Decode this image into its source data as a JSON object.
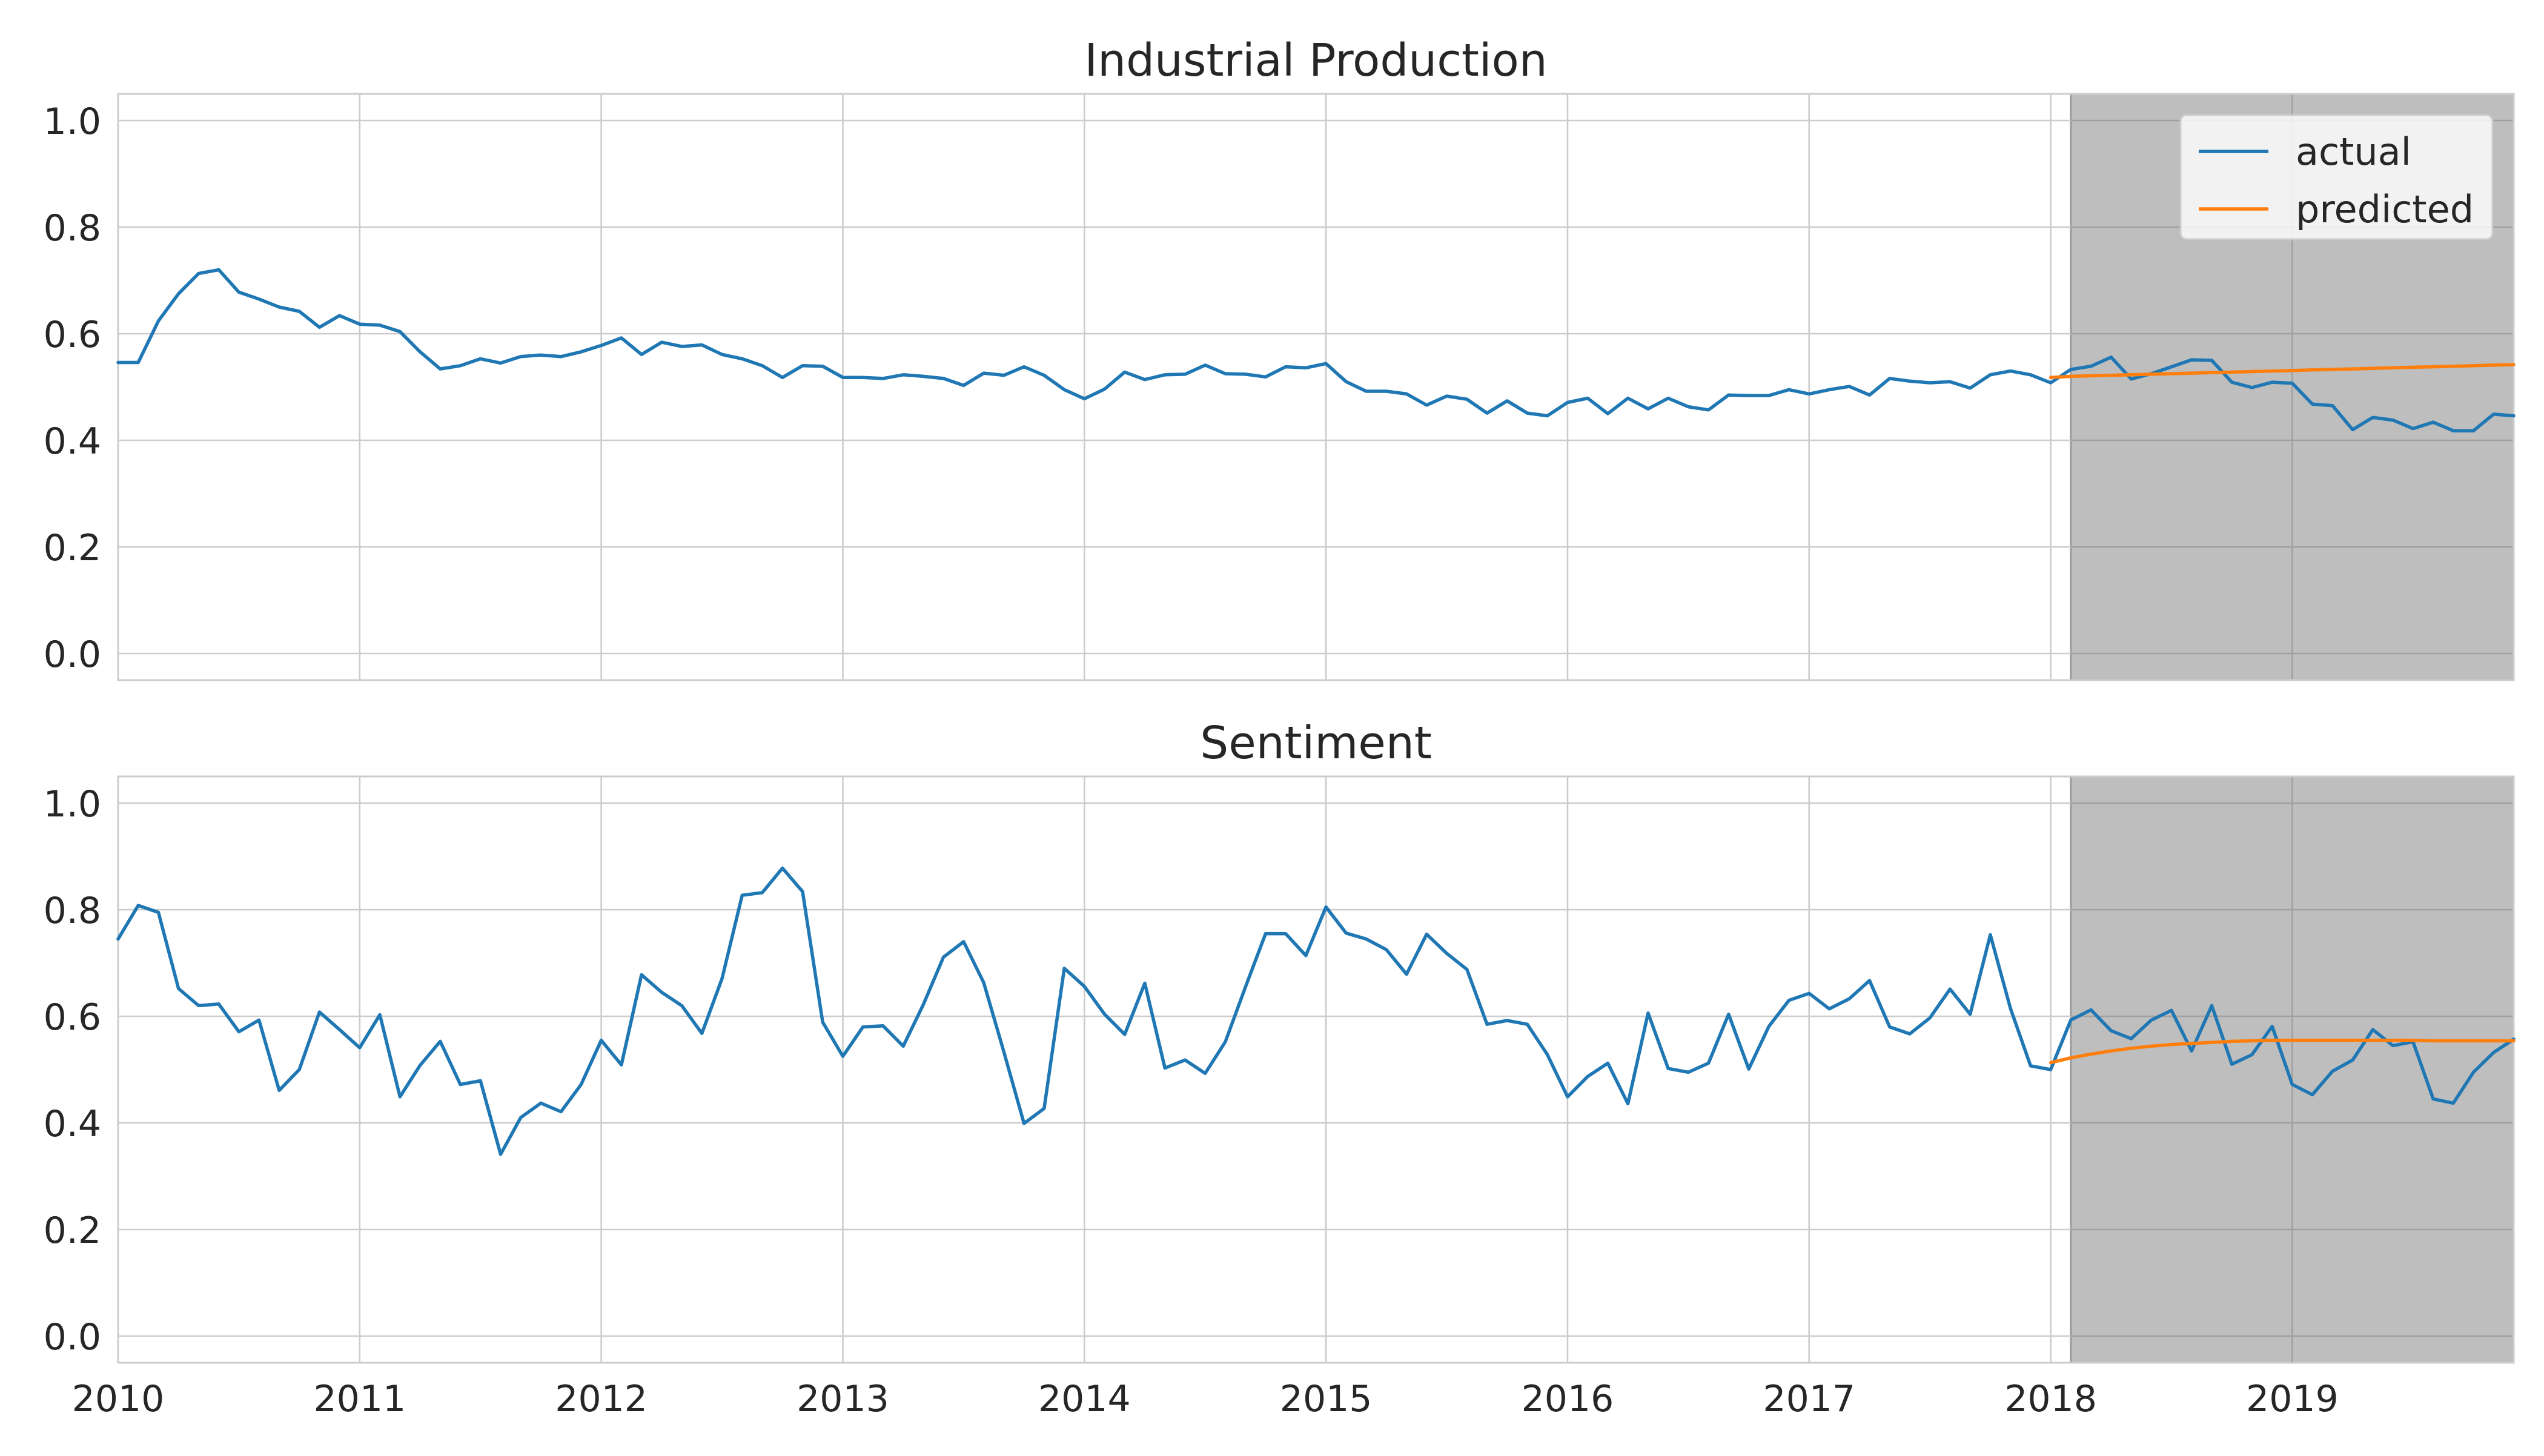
{
  "colors": {
    "actual": "#1f77b4",
    "predicted": "#ff7f0e",
    "forecast_shade": "#bebebe",
    "grid": "#cccccc",
    "axes_edge": "#cccccc",
    "text": "#262626"
  },
  "legend": {
    "placement": "top-right",
    "entries": [
      "actual",
      "predicted"
    ]
  },
  "chart_data": [
    {
      "type": "line",
      "title": "Industrial Production",
      "xlabel": "",
      "ylabel": "",
      "ylim": [
        -0.05,
        1.05
      ],
      "xlim": [
        "2010-01",
        "2019-12"
      ],
      "grid": true,
      "x_ticks": [
        "2010",
        "2011",
        "2012",
        "2013",
        "2014",
        "2015",
        "2016",
        "2017",
        "2018",
        "2019"
      ],
      "y_ticks": [
        "0.0",
        "0.2",
        "0.4",
        "0.6",
        "0.8",
        "1.0"
      ],
      "forecast_region": [
        "2018-02",
        "2019-12"
      ],
      "series": [
        {
          "name": "actual",
          "start": "2010-01",
          "values": [
            0.546,
            0.546,
            0.624,
            0.675,
            0.713,
            0.72,
            0.678,
            0.665,
            0.65,
            0.642,
            0.612,
            0.634,
            0.618,
            0.616,
            0.604,
            0.566,
            0.534,
            0.54,
            0.553,
            0.545,
            0.557,
            0.56,
            0.557,
            0.566,
            0.578,
            0.592,
            0.561,
            0.584,
            0.576,
            0.579,
            0.561,
            0.553,
            0.54,
            0.518,
            0.54,
            0.539,
            0.518,
            0.518,
            0.516,
            0.523,
            0.52,
            0.516,
            0.503,
            0.526,
            0.522,
            0.538,
            0.522,
            0.495,
            0.478,
            0.496,
            0.528,
            0.514,
            0.523,
            0.524,
            0.541,
            0.525,
            0.524,
            0.519,
            0.538,
            0.536,
            0.544,
            0.51,
            0.492,
            0.492,
            0.487,
            0.466,
            0.483,
            0.477,
            0.451,
            0.474,
            0.451,
            0.446,
            0.471,
            0.479,
            0.45,
            0.479,
            0.459,
            0.479,
            0.463,
            0.457,
            0.485,
            0.484,
            0.484,
            0.495,
            0.487,
            0.495,
            0.501,
            0.485,
            0.516,
            0.511,
            0.508,
            0.51,
            0.498,
            0.523,
            0.53,
            0.523,
            0.508,
            0.533,
            0.539,
            0.556,
            0.515,
            0.525,
            0.538,
            0.551,
            0.55,
            0.509,
            0.499,
            0.509,
            0.507,
            0.468,
            0.465,
            0.42,
            0.443,
            0.438,
            0.422,
            0.434,
            0.418,
            0.418,
            0.449,
            0.446
          ]
        },
        {
          "name": "predicted",
          "start": "2018-01",
          "values": [
            0.518,
            0.52,
            0.521,
            0.522,
            0.523,
            0.524,
            0.525,
            0.526,
            0.527,
            0.528,
            0.529,
            0.53,
            0.531,
            0.532,
            0.533,
            0.534,
            0.535,
            0.536,
            0.537,
            0.538,
            0.539,
            0.54,
            0.541,
            0.542
          ]
        }
      ]
    },
    {
      "type": "line",
      "title": "Sentiment",
      "xlabel": "",
      "ylabel": "",
      "ylim": [
        -0.05,
        1.05
      ],
      "xlim": [
        "2010-01",
        "2019-12"
      ],
      "grid": true,
      "x_ticks": [
        "2010",
        "2011",
        "2012",
        "2013",
        "2014",
        "2015",
        "2016",
        "2017",
        "2018",
        "2019"
      ],
      "y_ticks": [
        "0.0",
        "0.2",
        "0.4",
        "0.6",
        "0.8",
        "1.0"
      ],
      "forecast_region": [
        "2018-02",
        "2019-12"
      ],
      "series": [
        {
          "name": "actual",
          "start": "2010-01",
          "values": [
            0.745,
            0.808,
            0.795,
            0.652,
            0.62,
            0.623,
            0.571,
            0.593,
            0.461,
            0.5,
            0.608,
            0.575,
            0.541,
            0.603,
            0.449,
            0.508,
            0.553,
            0.472,
            0.479,
            0.341,
            0.41,
            0.437,
            0.421,
            0.472,
            0.555,
            0.509,
            0.678,
            0.645,
            0.62,
            0.568,
            0.671,
            0.827,
            0.832,
            0.878,
            0.834,
            0.589,
            0.525,
            0.58,
            0.582,
            0.544,
            0.622,
            0.711,
            0.74,
            0.663,
            0.533,
            0.399,
            0.427,
            0.69,
            0.656,
            0.604,
            0.566,
            0.662,
            0.503,
            0.518,
            0.493,
            0.552,
            0.655,
            0.755,
            0.755,
            0.714,
            0.805,
            0.756,
            0.745,
            0.725,
            0.679,
            0.754,
            0.718,
            0.688,
            0.585,
            0.592,
            0.585,
            0.528,
            0.449,
            0.487,
            0.512,
            0.436,
            0.606,
            0.502,
            0.495,
            0.512,
            0.604,
            0.501,
            0.581,
            0.63,
            0.643,
            0.614,
            0.633,
            0.667,
            0.58,
            0.567,
            0.597,
            0.651,
            0.604,
            0.753,
            0.615,
            0.507,
            0.5,
            0.593,
            0.612,
            0.573,
            0.558,
            0.593,
            0.611,
            0.535,
            0.62,
            0.51,
            0.528,
            0.581,
            0.472,
            0.453,
            0.497,
            0.518,
            0.575,
            0.545,
            0.552,
            0.445,
            0.437,
            0.495,
            0.532,
            0.557
          ]
        },
        {
          "name": "predicted",
          "start": "2018-01",
          "values": [
            0.513,
            0.522,
            0.529,
            0.535,
            0.54,
            0.544,
            0.547,
            0.549,
            0.551,
            0.553,
            0.554,
            0.555,
            0.555,
            0.555,
            0.555,
            0.555,
            0.555,
            0.555,
            0.555,
            0.554,
            0.554,
            0.554,
            0.554,
            0.554
          ]
        }
      ]
    }
  ]
}
